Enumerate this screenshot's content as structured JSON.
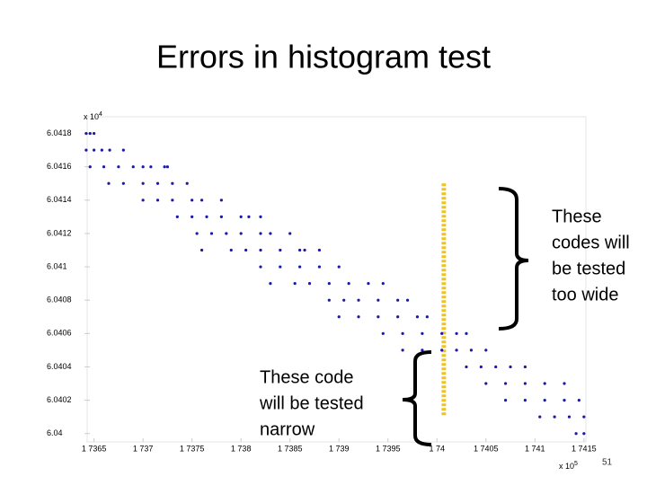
{
  "chart_data": {
    "type": "scatter",
    "title": "Errors in histogram test",
    "color": "#1a1aa8",
    "x": [
      1.73642,
      1.73646,
      1.7365,
      1.73642,
      1.7365,
      1.73658,
      1.73666,
      1.7368,
      1.73646,
      1.7366,
      1.73675,
      1.7369,
      1.737,
      1.73708,
      1.73722,
      1.73725,
      1.73665,
      1.7368,
      1.737,
      1.73715,
      1.7373,
      1.73745,
      1.737,
      1.73715,
      1.7373,
      1.7375,
      1.7376,
      1.7378,
      1.73735,
      1.7375,
      1.73765,
      1.7378,
      1.738,
      1.73808,
      1.7382,
      1.73755,
      1.7377,
      1.73785,
      1.738,
      1.7382,
      1.7383,
      1.7385,
      1.7376,
      1.7379,
      1.73805,
      1.7382,
      1.7384,
      1.7386,
      1.73865,
      1.7388,
      1.7382,
      1.7384,
      1.7386,
      1.7388,
      1.739,
      1.7383,
      1.73855,
      1.7387,
      1.7389,
      1.7391,
      1.7393,
      1.73945,
      1.7389,
      1.73905,
      1.7392,
      1.7394,
      1.7396,
      1.7397,
      1.739,
      1.7392,
      1.7394,
      1.7396,
      1.7398,
      1.7399,
      1.73945,
      1.73965,
      1.73985,
      1.74005,
      1.7402,
      1.7403,
      1.73965,
      1.73985,
      1.74005,
      1.7402,
      1.74035,
      1.7405,
      1.7403,
      1.74045,
      1.7406,
      1.74075,
      1.7409,
      1.7405,
      1.7407,
      1.7409,
      1.7411,
      1.7413,
      1.7407,
      1.7409,
      1.7411,
      1.7413,
      1.74145,
      1.74105,
      1.7412,
      1.74135,
      1.7415,
      1.74142,
      1.7415
    ],
    "y": [
      6.0418,
      6.0418,
      6.0418,
      6.0417,
      6.0417,
      6.0417,
      6.0417,
      6.0417,
      6.0416,
      6.0416,
      6.0416,
      6.0416,
      6.0416,
      6.0416,
      6.0416,
      6.0416,
      6.0415,
      6.0415,
      6.0415,
      6.0415,
      6.0415,
      6.0415,
      6.0414,
      6.0414,
      6.0414,
      6.0414,
      6.0414,
      6.0414,
      6.0413,
      6.0413,
      6.0413,
      6.0413,
      6.0413,
      6.0413,
      6.0413,
      6.0412,
      6.0412,
      6.0412,
      6.0412,
      6.0412,
      6.0412,
      6.0412,
      6.0411,
      6.0411,
      6.0411,
      6.0411,
      6.0411,
      6.0411,
      6.0411,
      6.0411,
      6.041,
      6.041,
      6.041,
      6.041,
      6.041,
      6.0409,
      6.0409,
      6.0409,
      6.0409,
      6.0409,
      6.0409,
      6.0409,
      6.0408,
      6.0408,
      6.0408,
      6.0408,
      6.0408,
      6.0408,
      6.0407,
      6.0407,
      6.0407,
      6.0407,
      6.0407,
      6.0407,
      6.0406,
      6.0406,
      6.0406,
      6.0406,
      6.0406,
      6.0406,
      6.0405,
      6.0405,
      6.0405,
      6.0405,
      6.0405,
      6.0405,
      6.0404,
      6.0404,
      6.0404,
      6.0404,
      6.0404,
      6.0403,
      6.0403,
      6.0403,
      6.0403,
      6.0403,
      6.0402,
      6.0402,
      6.0402,
      6.0402,
      6.0402,
      6.0401,
      6.0401,
      6.0401,
      6.0401,
      6.04,
      6.04
    ],
    "xlim": [
      1.73643,
      1.74152
    ],
    "ylim": [
      6.03995,
      6.0419
    ],
    "xticks": [
      {
        "value": 1.7365,
        "label": "1 7365"
      },
      {
        "value": 1.737,
        "label": "1 737"
      },
      {
        "value": 1.7375,
        "label": "1 7375"
      },
      {
        "value": 1.738,
        "label": "1 738"
      },
      {
        "value": 1.7385,
        "label": "1 7385"
      },
      {
        "value": 1.739,
        "label": "1 739"
      },
      {
        "value": 1.7395,
        "label": "1 7395"
      },
      {
        "value": 1.74,
        "label": "1 74"
      },
      {
        "value": 1.7405,
        "label": "1 7405"
      },
      {
        "value": 1.741,
        "label": "1 741"
      },
      {
        "value": 1.7415,
        "label": "1 7415"
      }
    ],
    "yticks": [
      6.0418,
      6.0416,
      6.0414,
      6.0412,
      6.041,
      6.0408,
      6.0406,
      6.0404,
      6.0402,
      6.04
    ],
    "y_multiplier": {
      "base": "x 10",
      "exp": "4"
    },
    "x_multiplier": {
      "base": "x 10",
      "exp": "5"
    },
    "highlight": {
      "x": 1.74007,
      "y": [
        6.0401,
        6.0415
      ],
      "color": "#f0c419"
    },
    "annotations": [
      {
        "lines": [
          "These",
          "codes will",
          "be tested",
          "too wide"
        ]
      },
      {
        "lines": [
          "These code",
          "will be tested",
          "narrow"
        ]
      }
    ]
  },
  "page_number": "51"
}
